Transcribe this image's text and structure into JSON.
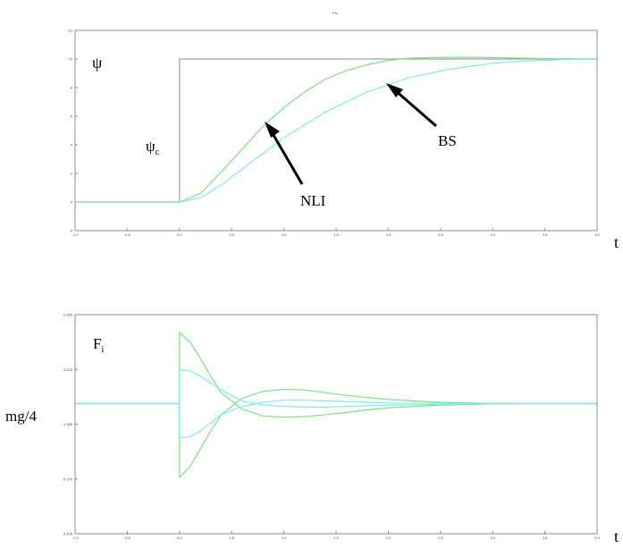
{
  "chart_data": [
    {
      "type": "line",
      "title": "Psi",
      "x_end_label": "t",
      "xlim": [
        -1.0,
        4.0
      ],
      "ylim": [
        -2,
        12
      ],
      "x_ticks": [
        "-1.0",
        "-0.5",
        "0.0",
        "0.5",
        "1.0",
        "1.5",
        "2.0",
        "2.5",
        "3.0",
        "3.5",
        "4.0"
      ],
      "y_ticks": [
        "-2",
        "0",
        "2",
        "4",
        "6",
        "8",
        "10",
        "12"
      ],
      "y_tick_values": [
        -2,
        0,
        2,
        4,
        6,
        8,
        10,
        12
      ],
      "annotations": {
        "psi": "ψ",
        "psi_c_main": "ψ",
        "psi_c_sub": "c",
        "nli": "NLI",
        "bs": "BS"
      },
      "series": [
        {
          "color": "#a0a0a0",
          "x": [
            -1.0,
            0.0,
            0.0,
            4.0
          ],
          "y": [
            0,
            0,
            10,
            10
          ]
        },
        {
          "color": "#7fe07f",
          "x": [
            -1.0,
            0.0,
            0.2,
            0.4,
            0.6,
            0.8,
            1.0,
            1.2,
            1.4,
            1.6,
            1.8,
            2.0,
            2.2,
            2.4,
            2.6,
            2.8,
            3.0,
            3.2,
            3.4,
            3.6,
            3.8,
            4.0
          ],
          "y": [
            0,
            0,
            0.6,
            2.1,
            3.7,
            5.3,
            6.6,
            7.7,
            8.6,
            9.2,
            9.6,
            9.9,
            10.05,
            10.1,
            10.12,
            10.12,
            10.1,
            10.07,
            10.04,
            10.02,
            10.01,
            10.0
          ]
        },
        {
          "color": "#7fe9ec",
          "x": [
            -1.0,
            0.0,
            0.2,
            0.4,
            0.6,
            0.8,
            1.0,
            1.2,
            1.4,
            1.6,
            1.8,
            2.0,
            2.2,
            2.4,
            2.6,
            2.8,
            3.0,
            3.2,
            3.4,
            3.6,
            3.8,
            4.0
          ],
          "y": [
            0,
            0,
            0.3,
            1.2,
            2.3,
            3.4,
            4.5,
            5.4,
            6.3,
            7.0,
            7.7,
            8.2,
            8.7,
            9.0,
            9.3,
            9.5,
            9.7,
            9.8,
            9.88,
            9.94,
            9.98,
            10.0
          ]
        }
      ]
    },
    {
      "type": "line",
      "title": "",
      "x_end_label": "t",
      "xlim": [
        -1.0,
        4.0
      ],
      "ylim": [
        0.105,
        0.265
      ],
      "x_ticks": [
        "-1.0",
        "-0.5",
        "0.0",
        "0.5",
        "1.0",
        "1.5",
        "2.0",
        "2.5",
        "3.0",
        "3.5",
        "4.0"
      ],
      "y_ticks": [
        "0.105",
        "0.145",
        "0.185",
        "0.225",
        "0.265"
      ],
      "y_tick_values": [
        0.105,
        0.145,
        0.185,
        0.225,
        0.265
      ],
      "y_side_label": "mg/4",
      "annotations": {
        "f_main": "F",
        "f_sub": "i"
      },
      "series": [
        {
          "color": "#7fe07f",
          "x": [
            -1.0,
            0.0,
            0.0,
            0.1,
            0.2,
            0.3,
            0.4,
            0.6,
            0.8,
            1.0,
            1.2,
            1.4,
            1.6,
            1.8,
            2.0,
            2.5,
            3.0,
            3.5,
            4.0
          ],
          "y": [
            0.2,
            0.2,
            0.252,
            0.245,
            0.233,
            0.22,
            0.208,
            0.196,
            0.191,
            0.19,
            0.1905,
            0.192,
            0.1935,
            0.1955,
            0.197,
            0.199,
            0.1998,
            0.2,
            0.2
          ]
        },
        {
          "color": "#7fe07f",
          "x": [
            -1.0,
            0.0,
            0.0,
            0.1,
            0.2,
            0.3,
            0.4,
            0.6,
            0.8,
            1.0,
            1.2,
            1.4,
            1.6,
            1.8,
            2.0,
            2.5,
            3.0,
            3.5,
            4.0
          ],
          "y": [
            0.2,
            0.2,
            0.146,
            0.154,
            0.167,
            0.18,
            0.192,
            0.204,
            0.209,
            0.2105,
            0.21,
            0.208,
            0.206,
            0.2045,
            0.203,
            0.201,
            0.2002,
            0.2,
            0.2
          ]
        },
        {
          "color": "#7fe9ec",
          "x": [
            -1.0,
            0.0,
            0.0,
            0.1,
            0.2,
            0.3,
            0.4,
            0.6,
            0.8,
            1.0,
            1.2,
            1.4,
            1.6,
            1.8,
            2.0,
            2.5,
            3.0,
            3.5,
            4.0
          ],
          "y": [
            0.2,
            0.2,
            0.225,
            0.224,
            0.22,
            0.215,
            0.21,
            0.202,
            0.199,
            0.198,
            0.1975,
            0.1975,
            0.198,
            0.1985,
            0.199,
            0.1995,
            0.2,
            0.2,
            0.2
          ]
        },
        {
          "color": "#7fe9ec",
          "x": [
            -1.0,
            0.0,
            0.0,
            0.1,
            0.2,
            0.3,
            0.4,
            0.6,
            0.8,
            1.0,
            1.2,
            1.4,
            1.6,
            1.8,
            2.0,
            2.5,
            3.0,
            3.5,
            4.0
          ],
          "y": [
            0.2,
            0.2,
            0.175,
            0.176,
            0.18,
            0.186,
            0.192,
            0.198,
            0.201,
            0.2025,
            0.2025,
            0.202,
            0.2015,
            0.201,
            0.2005,
            0.2003,
            0.2,
            0.2,
            0.2
          ]
        }
      ]
    }
  ]
}
